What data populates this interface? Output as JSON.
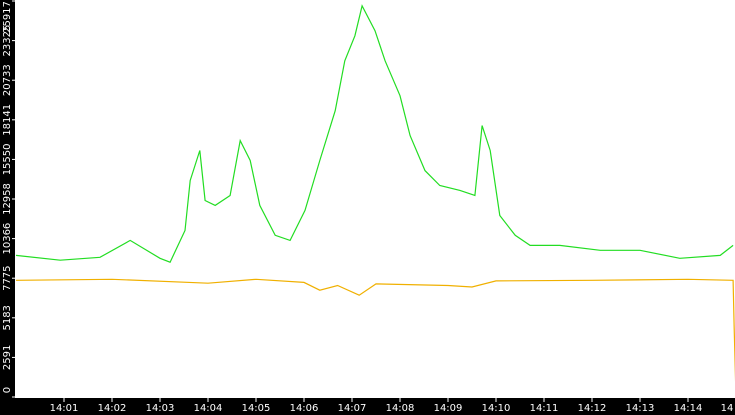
{
  "chart_data": {
    "type": "line",
    "xlim": [
      840,
      855
    ],
    "xticks": [
      {
        "value": 841,
        "label": "14:01"
      },
      {
        "value": 842,
        "label": "14:02"
      },
      {
        "value": 843,
        "label": "14:03"
      },
      {
        "value": 844,
        "label": "14:04"
      },
      {
        "value": 845,
        "label": "14:05"
      },
      {
        "value": 846,
        "label": "14:06"
      },
      {
        "value": 847,
        "label": "14:07"
      },
      {
        "value": 848,
        "label": "14:08"
      },
      {
        "value": 849,
        "label": "14:09"
      },
      {
        "value": 850,
        "label": "14:10"
      },
      {
        "value": 851,
        "label": "14:11"
      },
      {
        "value": 852,
        "label": "14:12"
      },
      {
        "value": 853,
        "label": "14:13"
      },
      {
        "value": 854,
        "label": "14:14"
      },
      {
        "value": 855,
        "label": "14"
      }
    ],
    "ylim": [
      0,
      25917
    ],
    "yticks": [
      0,
      2591,
      5183,
      7775,
      10366,
      12958,
      15550,
      18141,
      20733,
      23325,
      25917
    ],
    "grid": false,
    "series": [
      {
        "color": "#22dd22",
        "x": [
          840,
          840.92,
          841.75,
          842.38,
          843,
          843.21,
          843.52,
          843.63,
          843.83,
          843.94,
          844.15,
          844.46,
          844.67,
          844.88,
          845.08,
          845.4,
          845.71,
          846.02,
          846.33,
          846.65,
          846.85,
          847.06,
          847.21,
          847.48,
          847.69,
          848,
          848.21,
          848.52,
          848.83,
          849.25,
          849.56,
          849.71,
          849.88,
          850.08,
          850.4,
          850.71,
          851.33,
          852.17,
          853,
          853.83,
          854.67,
          854.94
        ],
        "values": [
          9270,
          8950,
          9140,
          10250,
          9080,
          8820,
          10900,
          14170,
          16130,
          12860,
          12540,
          13190,
          16780,
          15480,
          12540,
          10580,
          10250,
          12210,
          15480,
          18740,
          22000,
          23640,
          25600,
          23970,
          22000,
          19720,
          17110,
          14820,
          13840,
          13520,
          13190,
          17760,
          16130,
          11880,
          10580,
          9920,
          9920,
          9600,
          9600,
          9080,
          9270,
          9920
        ]
      },
      {
        "color": "#f0b000",
        "x": [
          840,
          842,
          844,
          845,
          846,
          846.33,
          846.7,
          847.15,
          847.5,
          849,
          849.5,
          850,
          852,
          854,
          854.94,
          854.96,
          855
        ],
        "values": [
          7640,
          7700,
          7450,
          7700,
          7500,
          6990,
          7300,
          6660,
          7400,
          7300,
          7200,
          7600,
          7640,
          7700,
          7640,
          4700,
          0
        ]
      }
    ]
  }
}
